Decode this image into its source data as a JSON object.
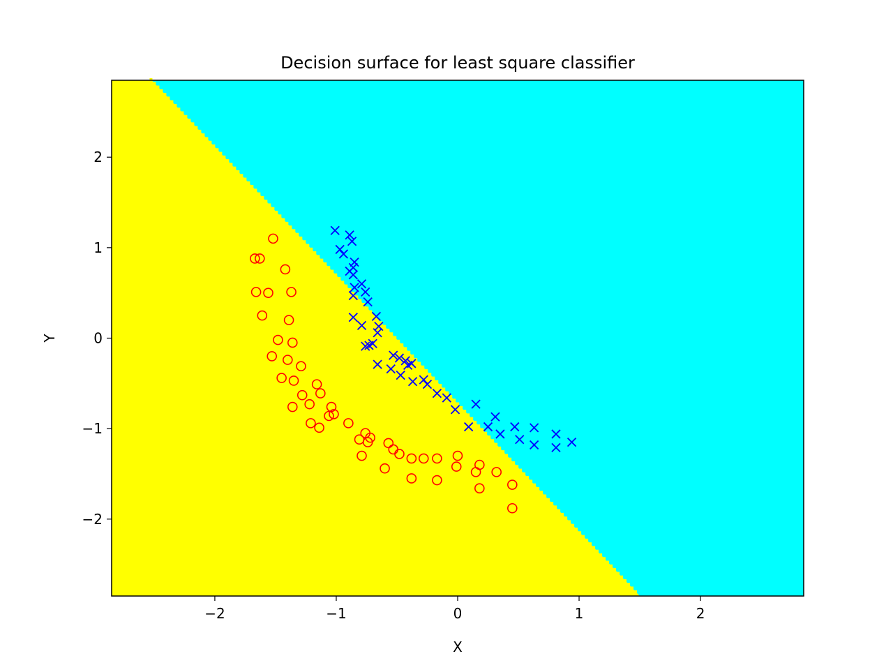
{
  "chart_data": {
    "type": "scatter",
    "title": "Decision surface for least square classifier",
    "xlabel": "X",
    "ylabel": "Y",
    "xlim": [
      -2.85,
      2.85
    ],
    "ylim": [
      -2.85,
      2.85
    ],
    "xticks": [
      -2,
      -1,
      0,
      1,
      2
    ],
    "yticks": [
      -2,
      -1,
      0,
      1,
      2
    ],
    "xtick_labels": [
      "−2",
      "−1",
      "0",
      "1",
      "2"
    ],
    "ytick_labels": [
      "−2",
      "−1",
      "0",
      "1",
      "2"
    ],
    "grid": false,
    "colors": {
      "region_a": "#ffff00",
      "region_b": "#00ffff",
      "class_a": "#ff0000",
      "class_b": "#0000ff"
    },
    "decision_boundary": [
      [
        -2.52,
        2.85
      ],
      [
        1.5,
        -2.85
      ]
    ],
    "series": [
      {
        "marker": "circle",
        "color": "#ff0000",
        "points": [
          [
            -1.52,
            1.1
          ],
          [
            -1.67,
            0.88
          ],
          [
            -1.63,
            0.88
          ],
          [
            -1.42,
            0.76
          ],
          [
            -1.66,
            0.51
          ],
          [
            -1.56,
            0.5
          ],
          [
            -1.37,
            0.51
          ],
          [
            -1.61,
            0.25
          ],
          [
            -1.39,
            0.2
          ],
          [
            -1.48,
            -0.02
          ],
          [
            -1.36,
            -0.05
          ],
          [
            -1.53,
            -0.2
          ],
          [
            -1.4,
            -0.24
          ],
          [
            -1.29,
            -0.31
          ],
          [
            -1.45,
            -0.44
          ],
          [
            -1.35,
            -0.47
          ],
          [
            -1.16,
            -0.51
          ],
          [
            -1.13,
            -0.61
          ],
          [
            -1.28,
            -0.63
          ],
          [
            -1.22,
            -0.73
          ],
          [
            -1.36,
            -0.76
          ],
          [
            -1.04,
            -0.76
          ],
          [
            -1.06,
            -0.86
          ],
          [
            -1.02,
            -0.84
          ],
          [
            -1.21,
            -0.94
          ],
          [
            -0.9,
            -0.94
          ],
          [
            -1.14,
            -0.99
          ],
          [
            -0.76,
            -1.05
          ],
          [
            -0.72,
            -1.1
          ],
          [
            -0.57,
            -1.16
          ],
          [
            -0.81,
            -1.12
          ],
          [
            -0.74,
            -1.15
          ],
          [
            -0.53,
            -1.23
          ],
          [
            -0.48,
            -1.28
          ],
          [
            -0.38,
            -1.33
          ],
          [
            -0.28,
            -1.33
          ],
          [
            -0.17,
            -1.33
          ],
          [
            0.0,
            -1.3
          ],
          [
            -0.79,
            -1.3
          ],
          [
            -0.6,
            -1.44
          ],
          [
            -0.01,
            -1.42
          ],
          [
            0.18,
            -1.4
          ],
          [
            0.15,
            -1.48
          ],
          [
            0.32,
            -1.48
          ],
          [
            -0.38,
            -1.55
          ],
          [
            -0.17,
            -1.57
          ],
          [
            0.45,
            -1.62
          ],
          [
            0.18,
            -1.66
          ],
          [
            0.45,
            -1.88
          ]
        ]
      },
      {
        "marker": "x",
        "color": "#0000ff",
        "points": [
          [
            -1.01,
            1.19
          ],
          [
            -0.89,
            1.14
          ],
          [
            -0.87,
            1.07
          ],
          [
            -0.97,
            0.98
          ],
          [
            -0.94,
            0.93
          ],
          [
            -0.85,
            0.84
          ],
          [
            -0.86,
            0.78
          ],
          [
            -0.89,
            0.74
          ],
          [
            -0.86,
            0.7
          ],
          [
            -0.79,
            0.6
          ],
          [
            -0.85,
            0.56
          ],
          [
            -0.76,
            0.51
          ],
          [
            -0.86,
            0.47
          ],
          [
            -0.74,
            0.4
          ],
          [
            -0.86,
            0.23
          ],
          [
            -0.67,
            0.24
          ],
          [
            -0.65,
            0.13
          ],
          [
            -0.66,
            0.06
          ],
          [
            -0.79,
            0.14
          ],
          [
            -0.7,
            -0.06
          ],
          [
            -0.73,
            -0.08
          ],
          [
            -0.76,
            -0.09
          ],
          [
            -0.53,
            -0.19
          ],
          [
            -0.48,
            -0.22
          ],
          [
            -0.43,
            -0.25
          ],
          [
            -0.38,
            -0.28
          ],
          [
            -0.41,
            -0.3
          ],
          [
            -0.55,
            -0.34
          ],
          [
            -0.66,
            -0.29
          ],
          [
            -0.47,
            -0.41
          ],
          [
            -0.37,
            -0.48
          ],
          [
            -0.28,
            -0.46
          ],
          [
            -0.25,
            -0.51
          ],
          [
            -0.17,
            -0.61
          ],
          [
            -0.09,
            -0.66
          ],
          [
            -0.02,
            -0.79
          ],
          [
            0.15,
            -0.73
          ],
          [
            0.09,
            -0.98
          ],
          [
            0.25,
            -0.98
          ],
          [
            0.31,
            -0.87
          ],
          [
            0.35,
            -1.06
          ],
          [
            0.47,
            -0.98
          ],
          [
            0.51,
            -1.12
          ],
          [
            0.63,
            -0.99
          ],
          [
            0.63,
            -1.18
          ],
          [
            0.81,
            -1.06
          ],
          [
            0.81,
            -1.21
          ],
          [
            0.94,
            -1.15
          ]
        ]
      }
    ]
  }
}
